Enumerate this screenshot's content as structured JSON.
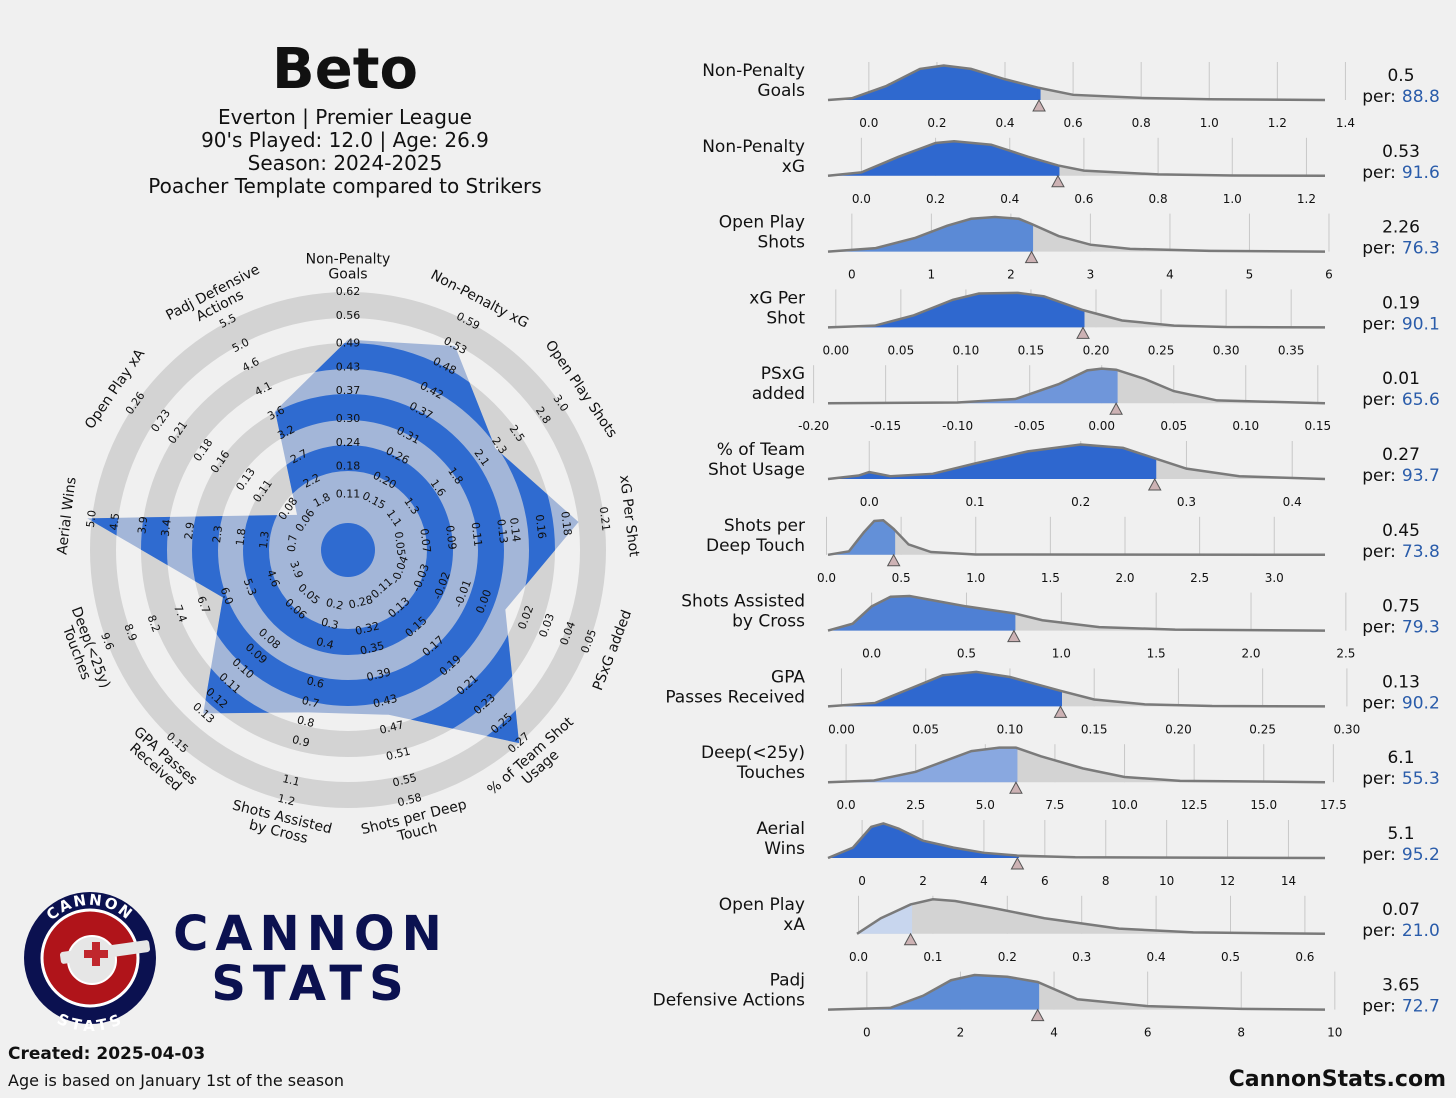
{
  "header": {
    "title": "Beto",
    "lines": [
      "Everton | Premier League",
      "90's Played: 12.0 | Age: 26.9",
      "Season: 2024-2025",
      "Poacher Template compared to Strikers"
    ]
  },
  "labels": {
    "per": "per:"
  },
  "logo": {
    "ring_top": "CANNON",
    "ring_bottom": "STATS",
    "word_top": "CANNON",
    "word_bottom": "STATS"
  },
  "footer": {
    "created": "Created: 2025-04-03",
    "note": "Age is based on January 1st of the season",
    "site": "CannonStats.com"
  },
  "chart_data": [
    {
      "type": "radar",
      "color": "#2f6bd0",
      "fill": "#a3b6d8",
      "ring_color": "#d3d3d3",
      "axes": [
        {
          "name": [
            "Non-Penalty",
            "Goals"
          ],
          "lim": [
            -0.03,
            0.62
          ],
          "ticks": [
            0.11,
            0.18,
            0.24,
            {
              "value": 0.3,
              "label": "0.30"
            },
            0.37,
            0.43,
            0.49,
            0.56,
            0.62
          ]
        },
        {
          "name": [
            "Non-Penalty xG"
          ],
          "lim": [
            0.03,
            0.59
          ],
          "ticks": [
            0.15,
            {
              "value": 0.2,
              "label": "0.20"
            },
            0.26,
            0.31,
            0.37,
            0.42,
            0.48,
            0.53,
            0.59
          ]
        },
        {
          "name": [
            "Open Play Shots"
          ],
          "lim": [
            0.58,
            3.0
          ],
          "ticks": [
            1.1,
            1.3,
            1.6,
            1.8,
            2.1,
            2.3,
            2.5,
            2.8,
            {
              "value": 3,
              "label": "3.0"
            }
          ]
        },
        {
          "name": [
            "xG Per Shot"
          ],
          "lim": [
            0.01,
            0.21
          ],
          "ticks": [
            0.05,
            0.07,
            0.09,
            0.11,
            0.13,
            0.14,
            0.16,
            0.18,
            0.21
          ]
        },
        {
          "name": [
            "PSxG added"
          ],
          "lim": [
            -0.065,
            0.05
          ],
          "ticks": [
            -0.04,
            -0.03,
            -0.02,
            -0.01,
            {
              "value": 0,
              "label": "0.00"
            },
            0.02,
            0.03,
            0.04,
            0.05
          ]
        },
        {
          "name": [
            "% of Team Shot",
            "Usage"
          ],
          "lim": [
            0.07,
            0.27
          ],
          "ticks": [
            0.11,
            0.13,
            0.15,
            0.17,
            0.19,
            0.21,
            0.23,
            0.25,
            0.27
          ]
        },
        {
          "name": [
            "Shots per Deep",
            "Touch"
          ],
          "lim": [
            0.2,
            0.58
          ],
          "ticks": [
            0.28,
            0.32,
            0.35,
            0.39,
            0.43,
            0.47,
            0.51,
            0.55,
            0.58
          ]
        },
        {
          "name": [
            "Shots Assisted",
            "by Cross"
          ],
          "lim": [
            -0.08,
            1.2
          ],
          "ticks": [
            0.2,
            0.3,
            0.4,
            0.6,
            0.7,
            0.8,
            0.9,
            1.1,
            1.2
          ]
        },
        {
          "name": [
            "GPA Passes",
            "Received"
          ],
          "lim": [
            0.02,
            0.15
          ],
          "ticks": [
            0.05,
            0.06,
            0.08,
            0.09,
            {
              "value": 0.1,
              "label": "0.10"
            },
            0.11,
            0.12,
            0.13,
            0.15
          ]
        },
        {
          "name": [
            "Deep(<25y)",
            "Touches"
          ],
          "lim": [
            2.33,
            9.6
          ],
          "ticks": [
            3.9,
            4.6,
            5.3,
            {
              "value": 6,
              "label": "6.0"
            },
            6.7,
            7.4,
            8.2,
            8.9,
            9.6
          ]
        },
        {
          "name": [
            "Aerial Wins"
          ],
          "lim": [
            -0.48,
            5.0
          ],
          "ticks": [
            0.7,
            1.3,
            1.8,
            2.3,
            2.9,
            3.4,
            3.9,
            4.5,
            {
              "value": 5,
              "label": "5.0"
            }
          ]
        },
        {
          "name": [
            "Open Play xA"
          ],
          "lim": [
            0.01,
            0.26
          ],
          "ticks": [
            0.06,
            0.08,
            0.11,
            0.13,
            0.16,
            0.18,
            0.21,
            0.23,
            0.26
          ]
        },
        {
          "name": [
            "Padj Defensive",
            "Actions"
          ],
          "lim": [
            0.78,
            5.5
          ],
          "ticks": [
            1.8,
            2.2,
            2.7,
            3.2,
            3.6,
            4.1,
            4.6,
            {
              "value": 5,
              "label": "5.0"
            },
            5.5
          ]
        }
      ],
      "values": [
        0.5,
        0.53,
        2.26,
        0.19,
        0.01,
        0.27,
        0.45,
        0.75,
        0.13,
        6.1,
        5.1,
        0.07,
        3.65
      ]
    },
    {
      "type": "density",
      "name": [
        "Non-Penalty",
        "Goals"
      ],
      "value": 0.5,
      "percentile": 88.8,
      "color": "#2f69cf",
      "xlim": [
        -0.12,
        1.34
      ],
      "ylim": [
        0,
        1.1
      ],
      "xticks": [
        {
          "value": 0,
          "label": "0.0"
        },
        0.2,
        0.4,
        0.6,
        0.8,
        {
          "value": 1,
          "label": "1.0"
        },
        1.2,
        1.4
      ],
      "density": {
        "x": [
          -0.12,
          -0.05,
          0.05,
          0.15,
          0.22,
          0.3,
          0.4,
          0.5,
          0.6,
          0.8,
          1.0,
          1.34
        ],
        "y": [
          0,
          0.05,
          0.4,
          0.9,
          1.0,
          0.9,
          0.6,
          0.35,
          0.15,
          0.06,
          0.02,
          0
        ]
      }
    },
    {
      "type": "density",
      "name": [
        "Non-Penalty",
        "xG"
      ],
      "value": 0.53,
      "percentile": 91.6,
      "color": "#2f68cf",
      "xlim": [
        -0.09,
        1.25
      ],
      "ylim": [
        0,
        1.1
      ],
      "xticks": [
        {
          "value": 0,
          "label": "0.0"
        },
        0.2,
        0.4,
        0.6,
        0.8,
        {
          "value": 1,
          "label": "1.0"
        },
        1.2
      ],
      "density": {
        "x": [
          -0.09,
          0.0,
          0.1,
          0.2,
          0.25,
          0.35,
          0.45,
          0.53,
          0.6,
          0.8,
          1.0,
          1.25
        ],
        "y": [
          0,
          0.1,
          0.55,
          0.95,
          1.0,
          0.9,
          0.55,
          0.3,
          0.15,
          0.04,
          0.01,
          0
        ]
      }
    },
    {
      "type": "density",
      "name": [
        "Open Play",
        "Shots"
      ],
      "value": 2.26,
      "percentile": 76.3,
      "color": "#5b8ad6",
      "xlim": [
        -0.3,
        5.95
      ],
      "ylim": [
        0,
        1.1
      ],
      "xticks": [
        0,
        1,
        2,
        3,
        4,
        5,
        6
      ],
      "density": {
        "x": [
          -0.3,
          0.3,
          0.8,
          1.2,
          1.5,
          1.8,
          2.1,
          2.26,
          2.6,
          3.0,
          3.5,
          4.5,
          5.95
        ],
        "y": [
          0,
          0.1,
          0.4,
          0.75,
          0.95,
          1.0,
          0.95,
          0.8,
          0.45,
          0.2,
          0.08,
          0.02,
          0
        ]
      }
    },
    {
      "type": "density",
      "name": [
        "xG Per",
        "Shot"
      ],
      "value": 0.19,
      "percentile": 90.1,
      "color": "#2f68cf",
      "xlim": [
        -0.006,
        0.376
      ],
      "ylim": [
        0,
        1.1
      ],
      "xticks": [
        {
          "value": 0,
          "label": "0.00"
        },
        0.05,
        {
          "value": 0.1,
          "label": "0.10"
        },
        0.15,
        {
          "value": 0.2,
          "label": "0.20"
        },
        0.25,
        {
          "value": 0.3,
          "label": "0.30"
        },
        0.35
      ],
      "density": {
        "x": [
          -0.006,
          0.03,
          0.06,
          0.09,
          0.11,
          0.14,
          0.16,
          0.19,
          0.22,
          0.26,
          0.3,
          0.376
        ],
        "y": [
          0,
          0.05,
          0.35,
          0.8,
          0.98,
          1.0,
          0.9,
          0.5,
          0.2,
          0.05,
          0.01,
          0
        ]
      }
    },
    {
      "type": "density",
      "name": [
        "PSxG",
        "added"
      ],
      "value": 0.01,
      "percentile": 65.6,
      "color": "#6f96da",
      "xlim": [
        -0.19,
        0.155
      ],
      "ylim": [
        0,
        1.1
      ],
      "xticks": [
        {
          "value": -0.2,
          "label": "-0.20"
        },
        -0.15,
        {
          "value": -0.1,
          "label": "-0.10"
        },
        -0.05,
        {
          "value": 0,
          "label": "0.00"
        },
        0.05,
        {
          "value": 0.1,
          "label": "0.10"
        },
        0.15
      ],
      "density": {
        "x": [
          -0.19,
          -0.1,
          -0.06,
          -0.03,
          -0.01,
          0.0,
          0.01,
          0.03,
          0.05,
          0.08,
          0.155
        ],
        "y": [
          0,
          0.02,
          0.12,
          0.55,
          0.95,
          1.0,
          0.97,
          0.7,
          0.35,
          0.08,
          0
        ]
      }
    },
    {
      "type": "density",
      "name": [
        "% of Team",
        "Shot Usage"
      ],
      "value": 0.27,
      "percentile": 93.7,
      "color": "#2e67cf",
      "xlim": [
        -0.039,
        0.431
      ],
      "ylim": [
        0,
        1.1
      ],
      "xticks": [
        {
          "value": 0,
          "label": "0.0"
        },
        0.1,
        0.2,
        0.3,
        0.4
      ],
      "density": {
        "x": [
          -0.039,
          -0.01,
          0.0,
          0.02,
          0.06,
          0.1,
          0.15,
          0.2,
          0.24,
          0.27,
          0.3,
          0.35,
          0.431
        ],
        "y": [
          0,
          0.1,
          0.2,
          0.08,
          0.15,
          0.45,
          0.8,
          1.0,
          0.9,
          0.6,
          0.3,
          0.08,
          0
        ]
      }
    },
    {
      "type": "density",
      "name": [
        "Shots per",
        "Deep Touch"
      ],
      "value": 0.45,
      "percentile": 73.8,
      "color": "#6390d8",
      "xlim": [
        0.01,
        3.34
      ],
      "ylim": [
        0,
        1.1
      ],
      "xticks": [
        {
          "value": 0,
          "label": "0.0"
        },
        0.5,
        {
          "value": 1,
          "label": "1.0"
        },
        1.5,
        {
          "value": 2,
          "label": "2.0"
        },
        2.5,
        {
          "value": 3,
          "label": "3.0"
        }
      ],
      "density": {
        "x": [
          0.01,
          0.15,
          0.25,
          0.32,
          0.38,
          0.45,
          0.55,
          0.7,
          1.0,
          3.34
        ],
        "y": [
          0,
          0.1,
          0.65,
          0.98,
          1.0,
          0.75,
          0.3,
          0.08,
          0.01,
          0
        ]
      }
    },
    {
      "type": "density",
      "name": [
        "Shots Assisted",
        "by Cross"
      ],
      "value": 0.75,
      "percentile": 79.3,
      "color": "#4f80d4",
      "xlim": [
        -0.23,
        2.39
      ],
      "ylim": [
        0,
        1.1
      ],
      "xticks": [
        {
          "value": 0,
          "label": "0.0"
        },
        0.5,
        {
          "value": 1,
          "label": "1.0"
        },
        1.5,
        {
          "value": 2,
          "label": "2.0"
        },
        2.5
      ],
      "density": {
        "x": [
          -0.23,
          -0.1,
          0.0,
          0.1,
          0.2,
          0.35,
          0.5,
          0.75,
          0.9,
          1.2,
          1.6,
          2.39
        ],
        "y": [
          0,
          0.2,
          0.7,
          0.98,
          1.0,
          0.85,
          0.7,
          0.5,
          0.3,
          0.1,
          0.03,
          0
        ]
      }
    },
    {
      "type": "density",
      "name": [
        "GPA",
        "Passes Received"
      ],
      "value": 0.13,
      "percentile": 90.2,
      "color": "#2f68cf",
      "xlim": [
        -0.008,
        0.287
      ],
      "ylim": [
        0,
        1.1
      ],
      "xticks": [
        {
          "value": 0,
          "label": "0.00"
        },
        0.05,
        {
          "value": 0.1,
          "label": "0.10"
        },
        0.15,
        {
          "value": 0.2,
          "label": "0.20"
        },
        0.25,
        {
          "value": 0.3,
          "label": "0.30"
        }
      ],
      "density": {
        "x": [
          -0.008,
          0.02,
          0.04,
          0.06,
          0.08,
          0.1,
          0.13,
          0.15,
          0.18,
          0.22,
          0.287
        ],
        "y": [
          0,
          0.1,
          0.5,
          0.9,
          1.0,
          0.85,
          0.45,
          0.2,
          0.06,
          0.01,
          0
        ]
      }
    },
    {
      "type": "density",
      "name": [
        "Deep(<25y)",
        "Touches"
      ],
      "value": 6.1,
      "percentile": 55.3,
      "color": "#89a8e0",
      "xlim": [
        -0.65,
        17.2
      ],
      "ylim": [
        0,
        1.1
      ],
      "xticks": [
        {
          "value": 0,
          "label": "0.0"
        },
        2.5,
        {
          "value": 5,
          "label": "5.0"
        },
        7.5,
        {
          "value": 10,
          "label": "10.0"
        },
        12.5,
        {
          "value": 15,
          "label": "15.0"
        },
        17.5
      ],
      "density": {
        "x": [
          -0.65,
          1,
          2.5,
          3.5,
          4.5,
          5.5,
          6.1,
          7,
          8.5,
          10,
          12,
          17.2
        ],
        "y": [
          0,
          0.05,
          0.3,
          0.6,
          0.9,
          1.0,
          1.0,
          0.75,
          0.4,
          0.15,
          0.04,
          0
        ]
      }
    },
    {
      "type": "density",
      "name": [
        "Aerial",
        "Wins"
      ],
      "value": 5.1,
      "percentile": 95.2,
      "color": "#2d66ce",
      "xlim": [
        -1.12,
        15.2
      ],
      "ylim": [
        0,
        1.1
      ],
      "xticks": [
        0,
        2,
        4,
        6,
        8,
        10,
        12,
        14
      ],
      "density": {
        "x": [
          -1.12,
          -0.3,
          0.3,
          0.7,
          1.2,
          2,
          3,
          4,
          5.1,
          7,
          15.2
        ],
        "y": [
          0,
          0.3,
          0.9,
          1.0,
          0.85,
          0.5,
          0.3,
          0.15,
          0.07,
          0.02,
          0
        ]
      }
    },
    {
      "type": "density",
      "name": [
        "Open Play",
        "xA"
      ],
      "value": 0.07,
      "percentile": 21,
      "percentile_label": "21.0",
      "color": "#c8d6ee",
      "xlim": [
        -0.041,
        0.627
      ],
      "ylim": [
        0,
        1.1
      ],
      "xticks": [
        {
          "value": 0,
          "label": "0.0"
        },
        0.1,
        0.2,
        0.3,
        0.4,
        0.5,
        0.6
      ],
      "density": {
        "x": [
          -0.002,
          0.03,
          0.07,
          0.1,
          0.13,
          0.18,
          0.25,
          0.35,
          0.45,
          0.627
        ],
        "y": [
          0,
          0.45,
          0.85,
          1.0,
          0.95,
          0.75,
          0.45,
          0.15,
          0.04,
          0
        ]
      }
    },
    {
      "type": "density",
      "name": [
        "Padj",
        "Defensive Actions"
      ],
      "value": 3.65,
      "percentile": 72.7,
      "color": "#5d8cd6",
      "xlim": [
        -0.83,
        9.79
      ],
      "ylim": [
        0,
        1.1
      ],
      "xticks": [
        0,
        2,
        4,
        6,
        8,
        10
      ],
      "density": {
        "x": [
          -0.83,
          0.5,
          1.2,
          1.8,
          2.3,
          3,
          3.65,
          4.5,
          6,
          8,
          9.79
        ],
        "y": [
          0,
          0.05,
          0.4,
          0.85,
          1.0,
          0.95,
          0.8,
          0.3,
          0.1,
          0.02,
          0
        ]
      }
    }
  ]
}
